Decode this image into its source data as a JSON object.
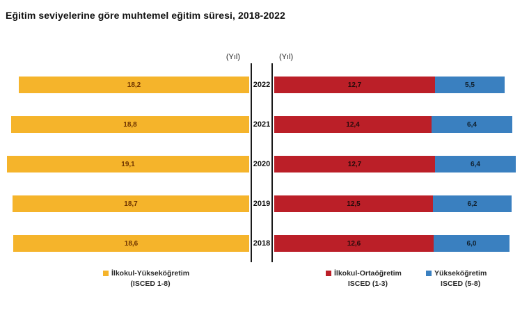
{
  "title": "Eğitim seviyelerine göre muhtemel eğitim süresi, 2018-2022",
  "axis": {
    "left_unit_label": "(Yıl)",
    "right_unit_label": "(Yıl)"
  },
  "colors": {
    "total_bar": "#F5B42B",
    "primary_secondary_bar": "#BB1F28",
    "tertiary_bar": "#3A80C0"
  },
  "legend": [
    {
      "label_line1": "İlkokul-Yükseköğretim",
      "label_line2": "(ISCED 1-8)",
      "color": "#F5B42B"
    },
    {
      "label_line1": "İlkokul-Ortaöğretim",
      "label_line2": "ISCED (1-3)",
      "color": "#BB1F28"
    },
    {
      "label_line1": "Yükseköğretim",
      "label_line2": "ISCED (5-8)",
      "color": "#3A80C0"
    }
  ],
  "chart_data": {
    "type": "bar",
    "orientation": "horizontal-mirrored",
    "title": "Eğitim seviyelerine göre muhtemel eğitim süresi, 2018-2022",
    "unit": "Yıl",
    "categories": [
      "2022",
      "2021",
      "2020",
      "2019",
      "2018"
    ],
    "series": [
      {
        "name": "İlkokul-Yükseköğretim (ISCED 1-8)",
        "side": "left",
        "color": "#F5B42B",
        "values": [
          18.2,
          18.8,
          19.1,
          18.7,
          18.6
        ],
        "labels": [
          "18,2",
          "18,8",
          "19,1",
          "18,7",
          "18,6"
        ]
      },
      {
        "name": "İlkokul-Ortaöğretim ISCED (1-3)",
        "side": "right",
        "stack": "right",
        "color": "#BB1F28",
        "values": [
          12.7,
          12.4,
          12.7,
          12.5,
          12.6
        ],
        "labels": [
          "12,7",
          "12,4",
          "12,7",
          "12,5",
          "12,6"
        ]
      },
      {
        "name": "Yükseköğretim ISCED (5-8)",
        "side": "right",
        "stack": "right",
        "color": "#3A80C0",
        "values": [
          5.5,
          6.4,
          6.4,
          6.2,
          6.0
        ],
        "labels": [
          "5,5",
          "6,4",
          "6,4",
          "6,2",
          "6,0"
        ]
      }
    ],
    "value_range_per_side": [
      0,
      19.6
    ],
    "grid": false,
    "legend_position": "bottom"
  }
}
